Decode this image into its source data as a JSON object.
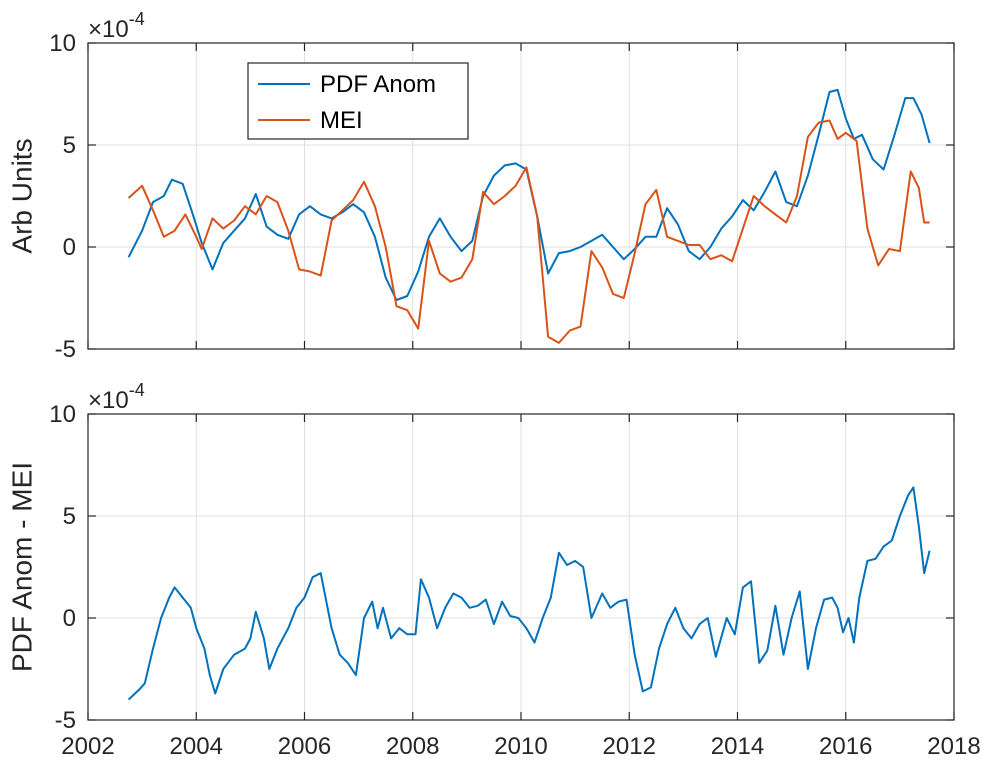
{
  "colors": {
    "pdf_anom": "#0072BD",
    "mei": "#D95319",
    "axis": "#262626",
    "grid": "#dfdfdf"
  },
  "chart_data": [
    {
      "type": "line",
      "ylabel": "Arb Units",
      "exponent_label": "×10",
      "exponent_power": "-4",
      "xlim": [
        2002,
        2018
      ],
      "ylim": [
        -5,
        10
      ],
      "x_ticks": [
        2002,
        2004,
        2006,
        2008,
        2010,
        2012,
        2014,
        2016,
        2018
      ],
      "y_ticks": [
        -5,
        0,
        5,
        10
      ],
      "grid": true,
      "legend_position": "upper-left",
      "series": [
        {
          "name": "PDF Anom",
          "color": "#0072BD",
          "x": [
            2002.75,
            2003.0,
            2003.2,
            2003.4,
            2003.55,
            2003.75,
            2003.95,
            2004.1,
            2004.3,
            2004.5,
            2004.7,
            2004.9,
            2005.1,
            2005.3,
            2005.5,
            2005.7,
            2005.9,
            2006.1,
            2006.3,
            2006.5,
            2006.7,
            2006.9,
            2007.1,
            2007.3,
            2007.5,
            2007.7,
            2007.9,
            2008.1,
            2008.3,
            2008.5,
            2008.7,
            2008.9,
            2009.1,
            2009.3,
            2009.5,
            2009.7,
            2009.9,
            2010.1,
            2010.3,
            2010.5,
            2010.7,
            2010.9,
            2011.1,
            2011.3,
            2011.5,
            2011.7,
            2011.9,
            2012.1,
            2012.3,
            2012.5,
            2012.7,
            2012.9,
            2013.1,
            2013.3,
            2013.5,
            2013.7,
            2013.9,
            2014.1,
            2014.3,
            2014.5,
            2014.7,
            2014.9,
            2015.1,
            2015.3,
            2015.5,
            2015.7,
            2015.85,
            2016.0,
            2016.15,
            2016.3,
            2016.5,
            2016.7,
            2016.9,
            2017.1,
            2017.25,
            2017.4,
            2017.55
          ],
          "values": [
            -0.5,
            0.8,
            2.2,
            2.5,
            3.3,
            3.1,
            1.5,
            0.2,
            -1.1,
            0.2,
            0.8,
            1.4,
            2.6,
            1.0,
            0.6,
            0.4,
            1.6,
            2.0,
            1.6,
            1.4,
            1.7,
            2.1,
            1.7,
            0.5,
            -1.5,
            -2.6,
            -2.4,
            -1.2,
            0.5,
            1.4,
            0.5,
            -0.2,
            0.3,
            2.5,
            3.5,
            4.0,
            4.1,
            3.8,
            1.5,
            -1.3,
            -0.3,
            -0.2,
            0.0,
            0.3,
            0.6,
            0.0,
            -0.6,
            -0.1,
            0.5,
            0.5,
            1.9,
            1.1,
            -0.2,
            -0.6,
            0.0,
            0.9,
            1.5,
            2.3,
            1.8,
            2.7,
            3.7,
            2.2,
            2.0,
            3.5,
            5.5,
            7.6,
            7.7,
            6.3,
            5.3,
            5.5,
            4.3,
            3.8,
            5.5,
            7.3,
            7.3,
            6.5,
            5.1
          ]
        },
        {
          "name": "MEI",
          "color": "#D95319",
          "x": [
            2002.75,
            2003.0,
            2003.2,
            2003.4,
            2003.6,
            2003.8,
            2004.0,
            2004.1,
            2004.3,
            2004.5,
            2004.7,
            2004.9,
            2005.1,
            2005.3,
            2005.5,
            2005.7,
            2005.9,
            2006.1,
            2006.3,
            2006.5,
            2006.7,
            2006.9,
            2007.1,
            2007.3,
            2007.5,
            2007.7,
            2007.9,
            2008.1,
            2008.3,
            2008.5,
            2008.7,
            2008.9,
            2009.1,
            2009.3,
            2009.5,
            2009.7,
            2009.9,
            2010.1,
            2010.3,
            2010.5,
            2010.7,
            2010.9,
            2011.1,
            2011.3,
            2011.5,
            2011.7,
            2011.9,
            2012.1,
            2012.3,
            2012.5,
            2012.7,
            2012.9,
            2013.1,
            2013.3,
            2013.5,
            2013.7,
            2013.9,
            2014.1,
            2014.3,
            2014.5,
            2014.7,
            2014.9,
            2015.1,
            2015.3,
            2015.5,
            2015.7,
            2015.85,
            2016.0,
            2016.2,
            2016.4,
            2016.6,
            2016.8,
            2017.0,
            2017.2,
            2017.35,
            2017.45,
            2017.55
          ],
          "values": [
            2.4,
            3.0,
            1.8,
            0.5,
            0.8,
            1.6,
            0.5,
            -0.1,
            1.4,
            0.9,
            1.3,
            2.0,
            1.6,
            2.5,
            2.2,
            0.8,
            -1.1,
            -1.2,
            -1.4,
            1.3,
            1.8,
            2.3,
            3.2,
            2.0,
            0.0,
            -2.9,
            -3.1,
            -4.0,
            0.3,
            -1.3,
            -1.7,
            -1.5,
            -0.6,
            2.7,
            2.1,
            2.5,
            3.0,
            3.9,
            1.5,
            -4.4,
            -4.7,
            -4.1,
            -3.9,
            -0.2,
            -1.0,
            -2.3,
            -2.5,
            -0.3,
            2.1,
            2.8,
            0.5,
            0.3,
            0.1,
            0.1,
            -0.6,
            -0.4,
            -0.7,
            0.9,
            2.5,
            2.0,
            1.6,
            1.2,
            2.5,
            5.4,
            6.1,
            6.2,
            5.3,
            5.6,
            5.2,
            0.9,
            -0.9,
            -0.1,
            -0.2,
            3.7,
            2.9,
            1.2,
            1.2
          ]
        }
      ]
    },
    {
      "type": "line",
      "ylabel": "PDF Anom - MEI",
      "exponent_label": "×10",
      "exponent_power": "-4",
      "xlim": [
        2002,
        2018
      ],
      "ylim": [
        -5,
        10
      ],
      "x_ticks": [
        2002,
        2004,
        2006,
        2008,
        2010,
        2012,
        2014,
        2016,
        2018
      ],
      "y_ticks": [
        -5,
        0,
        5,
        10
      ],
      "grid": true,
      "series": [
        {
          "color": "#0072BD",
          "x": [
            2002.75,
            2002.95,
            2003.05,
            2003.2,
            2003.35,
            2003.5,
            2003.6,
            2003.75,
            2003.9,
            2004.0,
            2004.15,
            2004.25,
            2004.35,
            2004.5,
            2004.7,
            2004.9,
            2005.0,
            2005.1,
            2005.25,
            2005.35,
            2005.5,
            2005.7,
            2005.85,
            2006.0,
            2006.15,
            2006.3,
            2006.5,
            2006.65,
            2006.8,
            2006.95,
            2007.1,
            2007.25,
            2007.35,
            2007.45,
            2007.6,
            2007.75,
            2007.9,
            2008.05,
            2008.15,
            2008.3,
            2008.45,
            2008.6,
            2008.75,
            2008.9,
            2009.05,
            2009.2,
            2009.35,
            2009.5,
            2009.65,
            2009.8,
            2009.95,
            2010.1,
            2010.25,
            2010.4,
            2010.55,
            2010.7,
            2010.85,
            2011.0,
            2011.15,
            2011.3,
            2011.5,
            2011.65,
            2011.8,
            2011.95,
            2012.1,
            2012.25,
            2012.4,
            2012.55,
            2012.7,
            2012.85,
            2013.0,
            2013.15,
            2013.3,
            2013.45,
            2013.6,
            2013.8,
            2013.95,
            2014.1,
            2014.25,
            2014.4,
            2014.55,
            2014.7,
            2014.85,
            2015.0,
            2015.15,
            2015.3,
            2015.45,
            2015.6,
            2015.75,
            2015.85,
            2015.95,
            2016.05,
            2016.15,
            2016.25,
            2016.4,
            2016.55,
            2016.7,
            2016.85,
            2017.0,
            2017.15,
            2017.25,
            2017.35,
            2017.45,
            2017.55
          ],
          "values": [
            -4.0,
            -3.5,
            -3.2,
            -1.5,
            0.0,
            1.0,
            1.5,
            1.0,
            0.5,
            -0.5,
            -1.5,
            -2.8,
            -3.7,
            -2.5,
            -1.8,
            -1.5,
            -1.0,
            0.3,
            -1.0,
            -2.5,
            -1.5,
            -0.5,
            0.5,
            1.0,
            2.0,
            2.2,
            -0.5,
            -1.8,
            -2.2,
            -2.8,
            0.0,
            0.8,
            -0.5,
            0.5,
            -1.0,
            -0.5,
            -0.8,
            -0.8,
            1.9,
            1.0,
            -0.5,
            0.5,
            1.2,
            1.0,
            0.5,
            0.6,
            0.9,
            -0.3,
            0.8,
            0.1,
            0.0,
            -0.5,
            -1.2,
            0.0,
            1.0,
            3.2,
            2.6,
            2.8,
            2.5,
            0.0,
            1.2,
            0.5,
            0.8,
            0.9,
            -1.8,
            -3.6,
            -3.4,
            -1.5,
            -0.3,
            0.5,
            -0.5,
            -1.0,
            -0.3,
            0.0,
            -1.9,
            0.0,
            -0.8,
            1.5,
            1.8,
            -2.2,
            -1.6,
            0.6,
            -1.8,
            0.0,
            1.3,
            -2.5,
            -0.5,
            0.9,
            1.0,
            0.5,
            -0.7,
            0.0,
            -1.2,
            1.0,
            2.8,
            2.9,
            3.5,
            3.8,
            5.0,
            6.0,
            6.4,
            4.5,
            2.2,
            3.3
          ]
        }
      ]
    }
  ]
}
